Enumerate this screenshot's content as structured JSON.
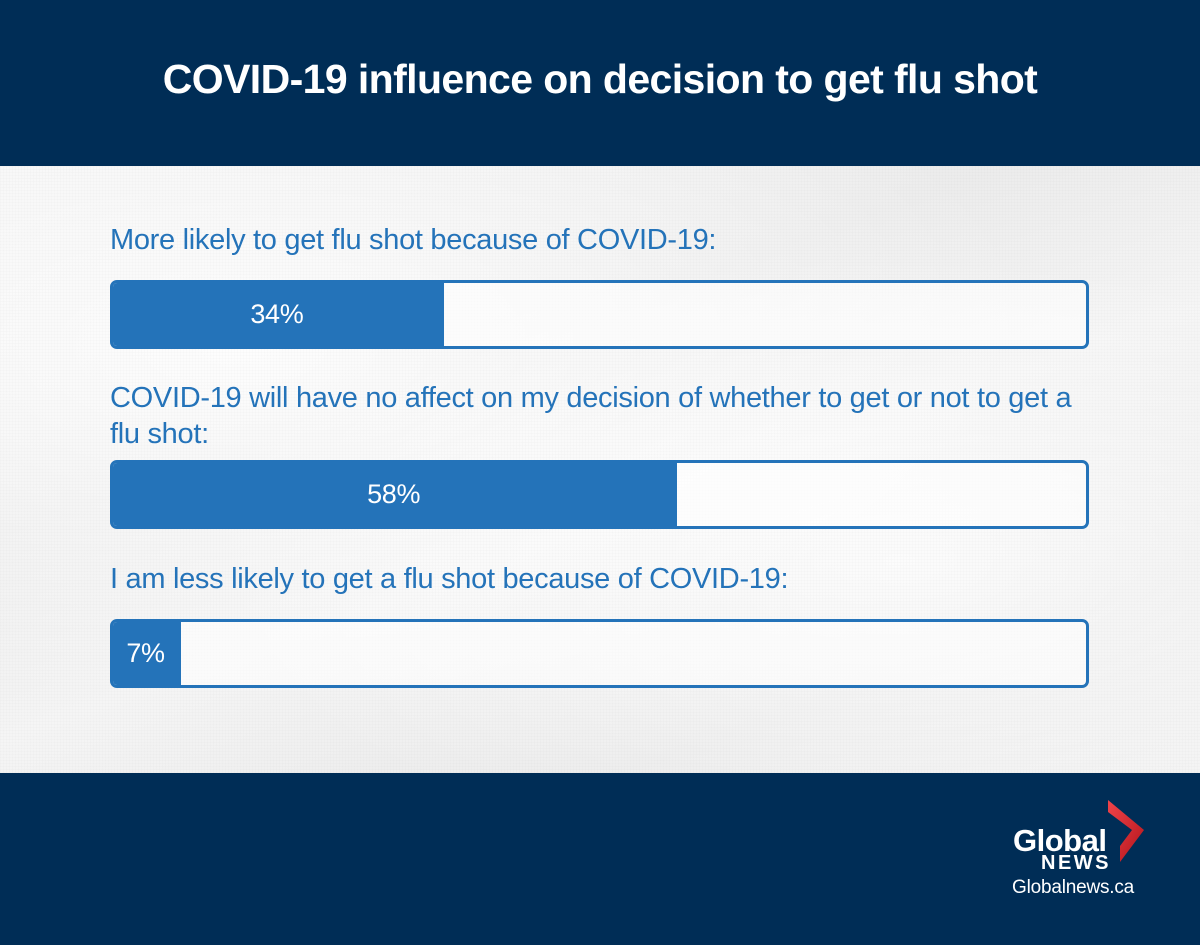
{
  "header": {
    "title": "COVID-19 influence on decision to get flu shot"
  },
  "colors": {
    "navy": "#002d56",
    "bar_blue": "#2473b9",
    "logo_red": "#d8232a",
    "text_white": "#ffffff"
  },
  "questions": [
    {
      "label": "More likely to get flu shot because of COVID-19:",
      "value": 34,
      "value_label": "34%"
    },
    {
      "label": "COVID-19 will have no affect on my decision of whether to get or not to get a flu shot:",
      "value": 58,
      "value_label": "58%"
    },
    {
      "label": "I am less likely to get a flu shot because of COVID-19:",
      "value": 7,
      "value_label": "7%"
    }
  ],
  "footer": {
    "logo_word": "Global",
    "logo_sub": "NEWS",
    "url": "Globalnews.ca",
    "logo_icon": "chevron-right-icon"
  },
  "chart_data": {
    "type": "bar",
    "orientation": "horizontal",
    "title": "COVID-19 influence on decision to get flu shot",
    "categories": [
      "More likely to get flu shot because of COVID-19:",
      "COVID-19 will have no affect on my decision of whether to get or not to get a flu shot:",
      "I am less likely to get a flu shot because of COVID-19:"
    ],
    "values": [
      34,
      58,
      7
    ],
    "value_labels": [
      "34%",
      "58%",
      "7%"
    ],
    "unit": "%",
    "xlabel": "",
    "ylabel": "",
    "xlim": [
      0,
      100
    ],
    "grid": false,
    "legend": null,
    "source": "Globalnews.ca"
  }
}
